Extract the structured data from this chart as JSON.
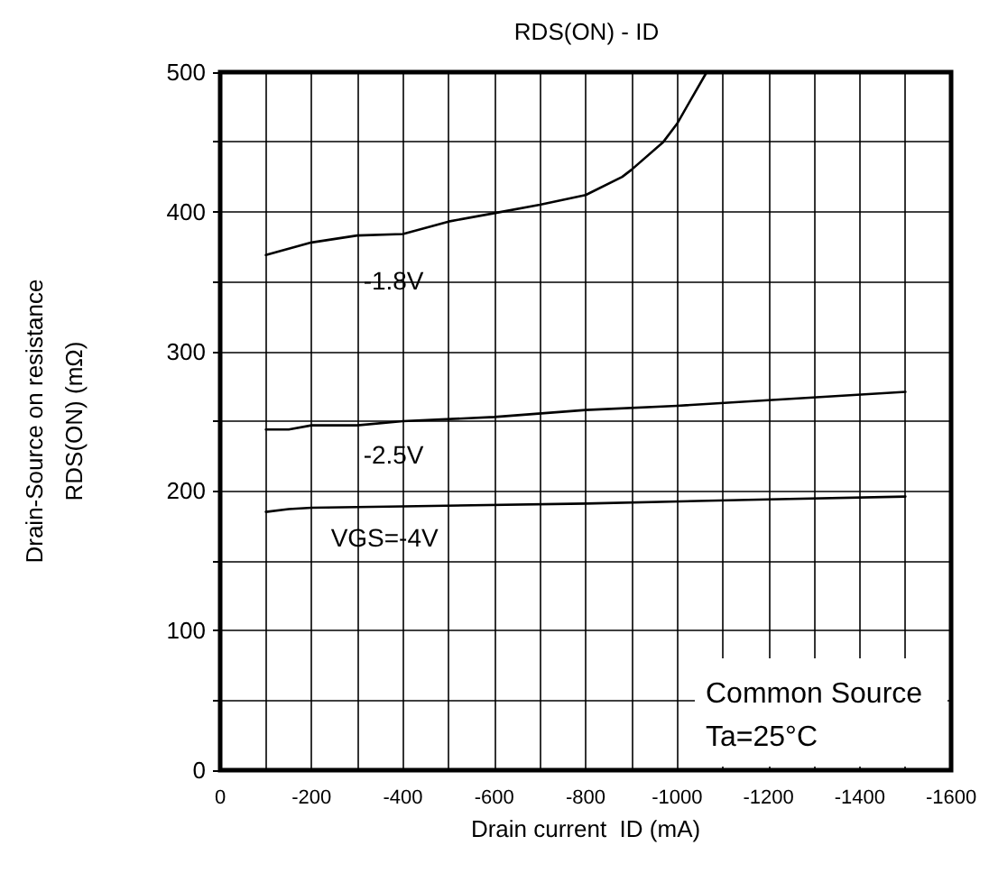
{
  "chart_data": {
    "type": "line",
    "title": "RDS(ON) - ID",
    "xlabel": "Drain current  ID (mA)",
    "ylabel": "Drain-Source on resistance\nRDS(ON) (mΩ)",
    "xlim": [
      0,
      -1600
    ],
    "xticks": [
      0,
      {
        "value": -100,
        "label": null
      },
      -200,
      {
        "value": -300,
        "label": null
      },
      -400,
      {
        "value": -500,
        "label": null
      },
      -600,
      {
        "value": -700,
        "label": null
      },
      -800,
      {
        "value": -900,
        "label": null
      },
      -1000,
      {
        "value": -1100,
        "label": null
      },
      -1200,
      {
        "value": -1300,
        "label": null
      },
      -1400,
      {
        "value": -1500,
        "label": null
      },
      -1600
    ],
    "ylim": [
      0,
      500
    ],
    "yticks": [
      0,
      {
        "value": 50,
        "label": null
      },
      100,
      {
        "value": 150,
        "label": null
      },
      200,
      {
        "value": 250,
        "label": null
      },
      300,
      {
        "value": 350,
        "label": null
      },
      400,
      {
        "value": 450,
        "label": null
      },
      500
    ],
    "grid": true,
    "marker": "none",
    "line_style": "solid",
    "series": [
      {
        "name": "-1.8V",
        "color": "#000000",
        "x": [
          -100,
          -200,
          -300,
          -400,
          -500,
          -600,
          -700,
          -800,
          -880,
          -900,
          -970,
          -1000,
          -1035,
          -1065
        ],
        "values": [
          369,
          378,
          383,
          384,
          393,
          399,
          405,
          412,
          425,
          430,
          450,
          463,
          483,
          500
        ]
      },
      {
        "name": "-2.5V",
        "color": "#000000",
        "x": [
          -100,
          -150,
          -200,
          -300,
          -400,
          -600,
          -800,
          -1000,
          -1200,
          -1500
        ],
        "values": [
          244,
          244,
          247,
          247,
          250,
          253,
          258,
          261,
          265,
          271
        ]
      },
      {
        "name": "VGS=-4V",
        "color": "#000000",
        "x": [
          -100,
          -150,
          -200,
          -400,
          -800,
          -1200,
          -1500
        ],
        "values": [
          185,
          187,
          188,
          189,
          191,
          194,
          196
        ]
      }
    ],
    "annotations": [
      "Common Source",
      "Ta=25°C"
    ]
  }
}
